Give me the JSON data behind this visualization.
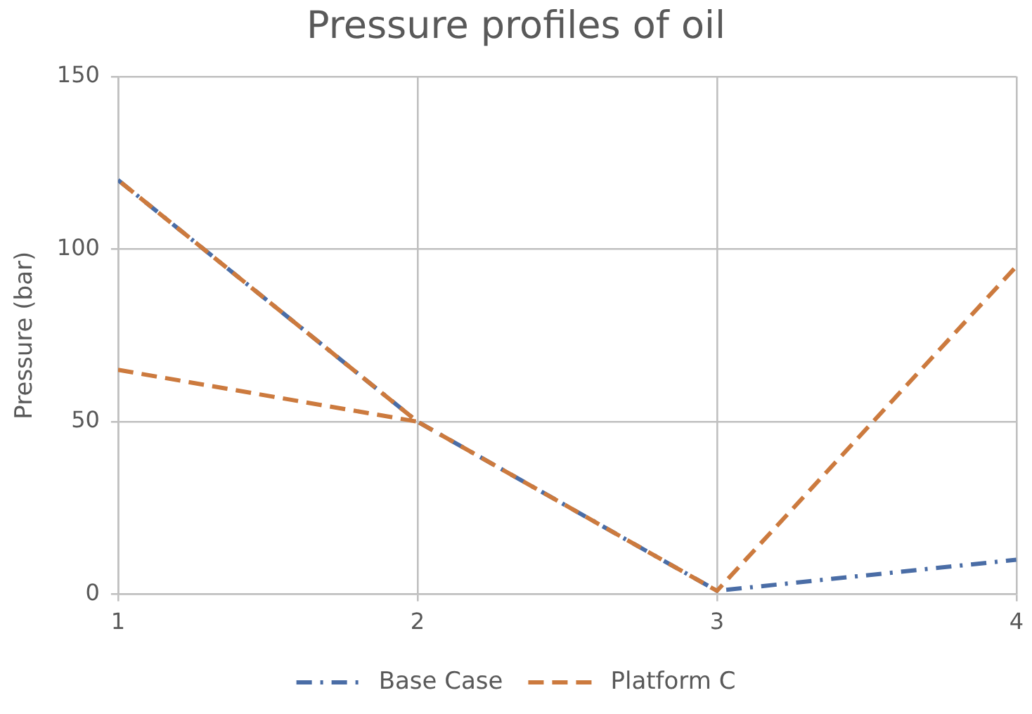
{
  "chart_data": {
    "type": "line",
    "title": "Pressure profiles of oil",
    "ylabel": "Pressure (bar)",
    "x": [
      1,
      2,
      3,
      4
    ],
    "series": [
      {
        "name": "Base Case",
        "color": "#4a6da6",
        "values": [
          120,
          50,
          1,
          10
        ],
        "line_style": "dashdot"
      },
      {
        "name": "Platform C",
        "color": "#cc7a3e",
        "x": [
          1,
          2,
          1,
          2,
          3,
          4
        ],
        "values": [
          65,
          50,
          120,
          50,
          1,
          95
        ],
        "line_style": "dashed"
      }
    ],
    "xlim": [
      1,
      4
    ],
    "ylim": [
      0,
      150
    ],
    "xticks": [
      1,
      2,
      3,
      4
    ],
    "yticks": [
      0,
      50,
      100,
      150
    ],
    "grid": true,
    "legend": "bottom",
    "marker": "none"
  }
}
